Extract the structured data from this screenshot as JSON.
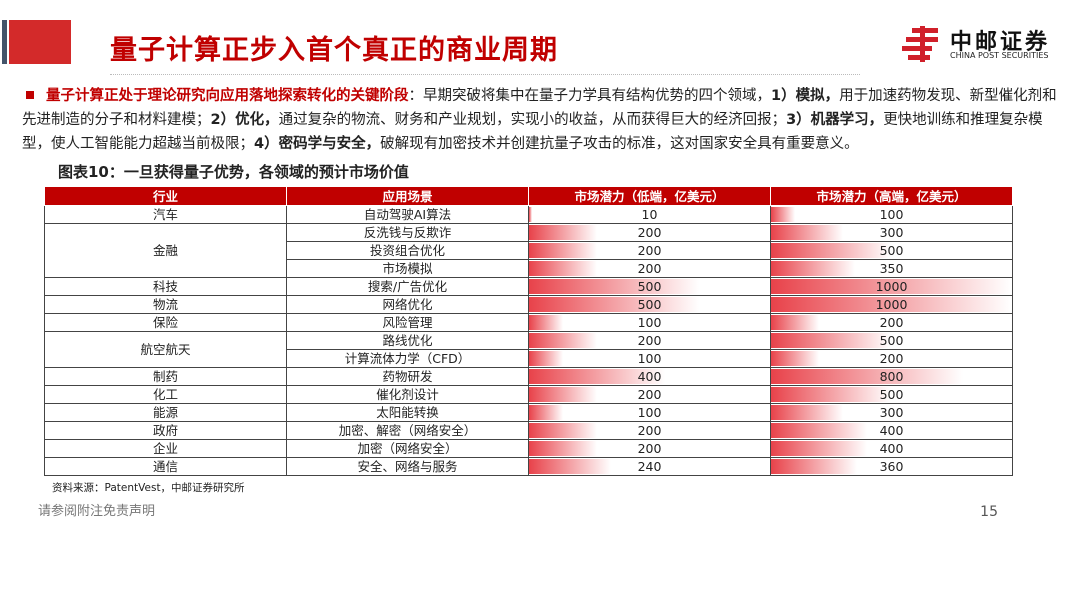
{
  "header": {
    "title": "量子计算正步入首个真正的商业周期",
    "logo_cn": "中邮证券",
    "logo_en": "CHINA POST SECURITIES"
  },
  "para": {
    "lead": "量子计算正处于理论研究向应用落地探索转化的关键阶段",
    "t1": "：早期突破将集中在量子力学具有结构优势的四个领域，",
    "k1": "1）模拟，",
    "t2": "用于加速药物发现、新型催化剂和先进制造的分子和材料建模；",
    "k2": "2）优化，",
    "t3": "通过复杂的物流、财务和产业规划，实现小的收益，从而获得巨大的经济回报；",
    "k3": "3）机器学习，",
    "t4": "更快地训练和推理复杂模型，使人工智能能力超越当前极限；",
    "k4": "4）密码学与安全，",
    "t5": "破解现有加密技术并创建抗量子攻击的标准，这对国家安全具有重要意义。"
  },
  "figure_title": "图表10：一旦获得量子优势，各领域的预计市场价值",
  "table": {
    "headers": [
      "行业",
      "应用场景",
      "市场潜力（低端，亿美元）",
      "市场潜力（高端，亿美元）"
    ],
    "groups": [
      {
        "industry": "汽车",
        "rows": [
          [
            "自动驾驶AI算法",
            10,
            100
          ]
        ]
      },
      {
        "industry": "金融",
        "rows": [
          [
            "反洗钱与反欺诈",
            200,
            300
          ],
          [
            "投资组合优化",
            200,
            500
          ],
          [
            "市场模拟",
            200,
            350
          ]
        ]
      },
      {
        "industry": "科技",
        "rows": [
          [
            "搜索/广告优化",
            500,
            1000
          ]
        ]
      },
      {
        "industry": "物流",
        "rows": [
          [
            "网络优化",
            500,
            1000
          ]
        ]
      },
      {
        "industry": "保险",
        "rows": [
          [
            "风险管理",
            100,
            200
          ]
        ]
      },
      {
        "industry": "航空航天",
        "rows": [
          [
            "路线优化",
            200,
            500
          ],
          [
            "计算流体力学（CFD）",
            100,
            200
          ]
        ]
      },
      {
        "industry": "制药",
        "rows": [
          [
            "药物研发",
            400,
            800
          ]
        ]
      },
      {
        "industry": "化工",
        "rows": [
          [
            "催化剂设计",
            200,
            500
          ]
        ]
      },
      {
        "industry": "能源",
        "rows": [
          [
            "太阳能转换",
            100,
            300
          ]
        ]
      },
      {
        "industry": "政府",
        "rows": [
          [
            "加密、解密（网络安全）",
            200,
            400
          ]
        ]
      },
      {
        "industry": "企业",
        "rows": [
          [
            "加密（网络安全）",
            200,
            400
          ]
        ]
      },
      {
        "industry": "通信",
        "rows": [
          [
            "安全、网络与服务",
            240,
            360
          ]
        ]
      }
    ]
  },
  "source": "资料来源：PatentVest，中邮证券研究所",
  "footer": {
    "disclaimer": "请参阅附注免责声明",
    "page": "15"
  },
  "colors": {
    "accent": "#c00000"
  }
}
